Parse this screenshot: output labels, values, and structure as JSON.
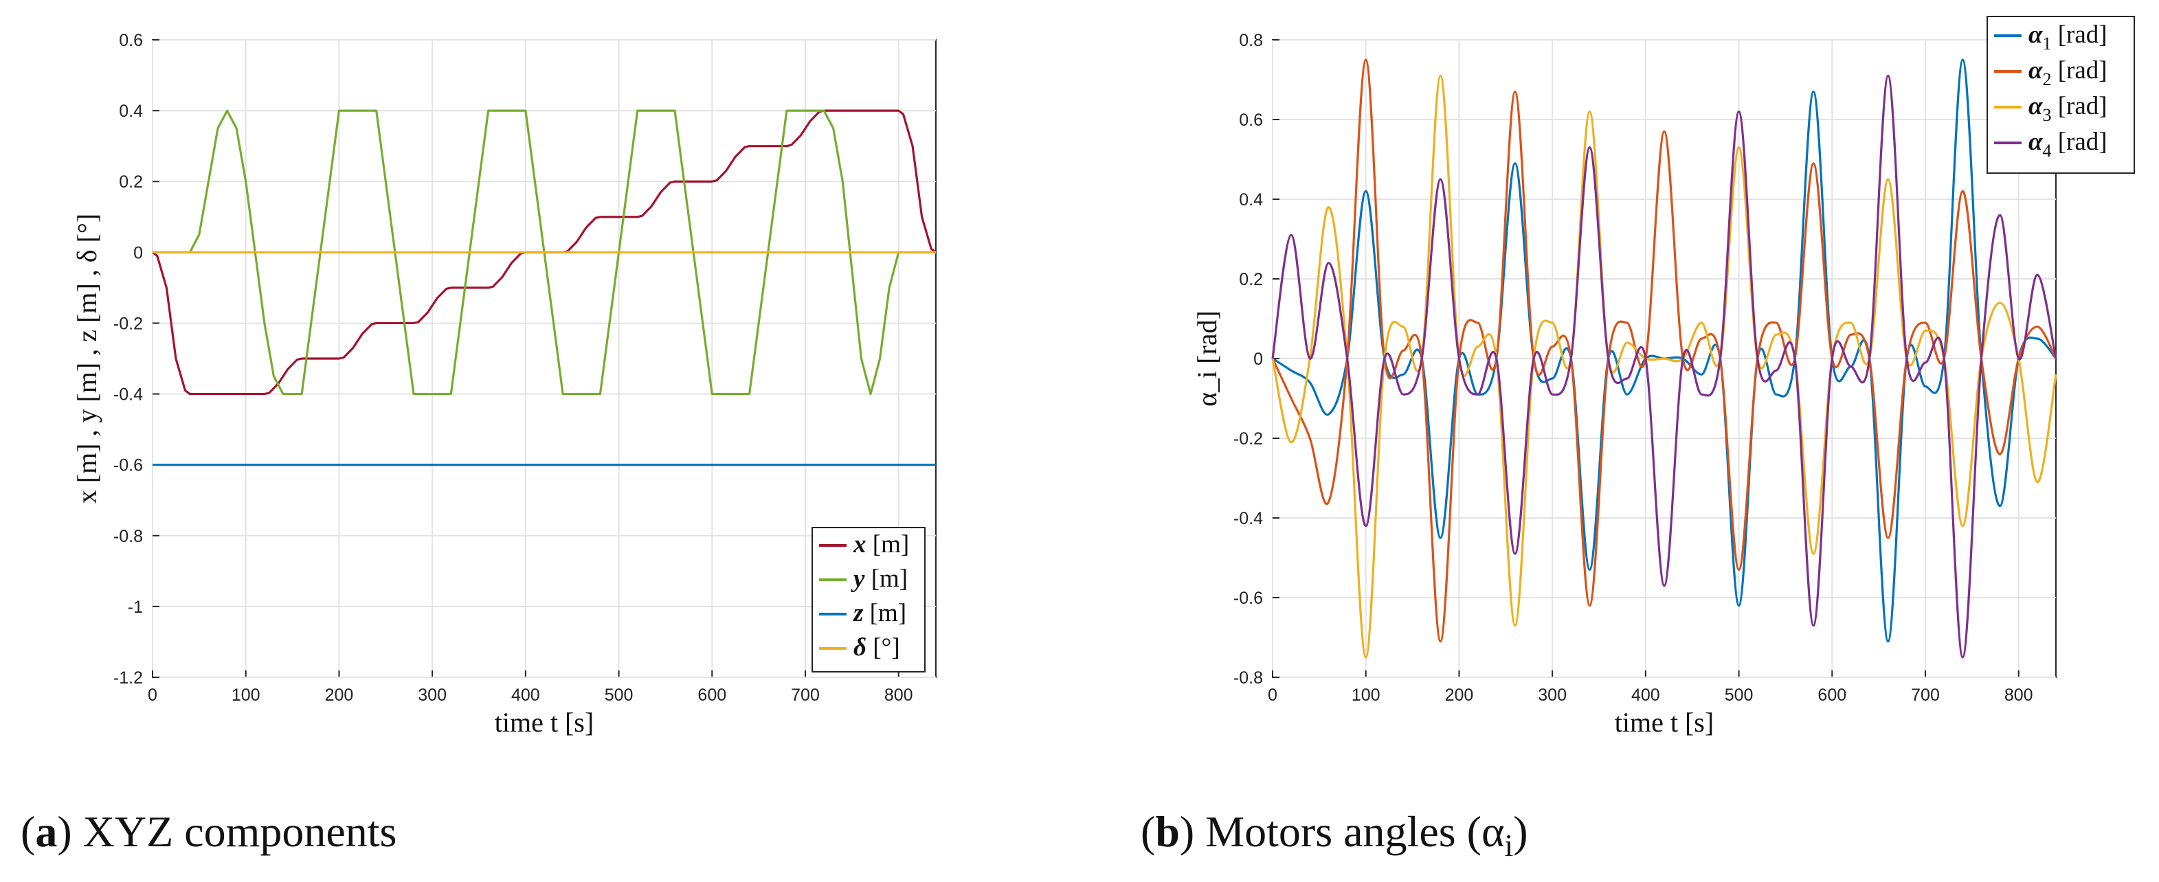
{
  "chart_data": [
    {
      "id": "a",
      "type": "line",
      "caption": {
        "letter": "a",
        "text": " XYZ components"
      },
      "xlabel": "time t [s]",
      "ylabel": "x [m] , y [m] , z [m] , δ [°]",
      "xlim": [
        0,
        840
      ],
      "ylim": [
        -1.2,
        0.6
      ],
      "xticks": [
        0,
        100,
        200,
        300,
        400,
        500,
        600,
        700,
        800
      ],
      "yticks": [
        -1.2,
        -1,
        -0.8,
        -0.6,
        -0.4,
        -0.2,
        0,
        0.2,
        0.4,
        0.6
      ],
      "ytick_labels": [
        "-1.2",
        "-1",
        "-0.8",
        "-0.6",
        "-0.4",
        "-0.2",
        "0",
        "0.2",
        "0.4",
        "0.6"
      ],
      "grid": true,
      "legend_position": "bottom-right",
      "series": [
        {
          "name": "x [m]",
          "color": "#a2142f",
          "x": [
            0,
            5,
            15,
            25,
            35,
            40,
            50,
            60,
            70,
            80,
            90,
            100,
            110,
            120,
            125,
            135,
            145,
            155,
            160,
            200,
            205,
            215,
            225,
            235,
            240,
            280,
            285,
            295,
            305,
            315,
            320,
            360,
            365,
            375,
            385,
            395,
            400,
            440,
            445,
            455,
            465,
            475,
            480,
            520,
            525,
            535,
            545,
            555,
            560,
            600,
            605,
            615,
            625,
            635,
            640,
            680,
            685,
            695,
            705,
            715,
            720,
            800,
            805,
            815,
            825,
            835,
            840
          ],
          "y": [
            0,
            -0.01,
            -0.1,
            -0.3,
            -0.39,
            -0.4,
            -0.4,
            -0.4,
            -0.4,
            -0.4,
            -0.4,
            -0.4,
            -0.4,
            -0.4,
            -0.397,
            -0.37,
            -0.33,
            -0.303,
            -0.3,
            -0.3,
            -0.297,
            -0.27,
            -0.23,
            -0.203,
            -0.2,
            -0.2,
            -0.197,
            -0.17,
            -0.13,
            -0.103,
            -0.1,
            -0.1,
            -0.097,
            -0.07,
            -0.03,
            -0.003,
            0,
            0,
            0.003,
            0.03,
            0.07,
            0.097,
            0.1,
            0.1,
            0.103,
            0.13,
            0.17,
            0.197,
            0.2,
            0.2,
            0.203,
            0.23,
            0.27,
            0.297,
            0.3,
            0.3,
            0.303,
            0.33,
            0.37,
            0.397,
            0.4,
            0.4,
            0.39,
            0.3,
            0.1,
            0.01,
            0
          ]
        },
        {
          "name": "y [m]",
          "color": "#77ac30",
          "x": [
            0,
            40,
            50,
            60,
            70,
            80,
            90,
            100,
            110,
            120,
            130,
            140,
            150,
            160,
            170,
            180,
            190,
            200,
            240,
            250,
            260,
            270,
            280,
            320,
            330,
            340,
            350,
            360,
            400,
            410,
            420,
            430,
            440,
            480,
            490,
            500,
            510,
            520,
            560,
            570,
            580,
            590,
            600,
            640,
            650,
            660,
            670,
            680,
            720,
            730,
            740,
            750,
            760,
            770,
            780,
            790,
            800,
            840
          ],
          "y": [
            0,
            0,
            0.05,
            0.2,
            0.35,
            0.4,
            0.35,
            0.2,
            0.0,
            -0.2,
            -0.35,
            -0.4,
            -0.4,
            -0.4,
            -0.2,
            0.0,
            0.2,
            0.4,
            0.4,
            0.2,
            0.0,
            -0.2,
            -0.4,
            -0.4,
            -0.2,
            0.0,
            0.2,
            0.4,
            0.4,
            0.2,
            0.0,
            -0.2,
            -0.4,
            -0.4,
            -0.2,
            0.0,
            0.2,
            0.4,
            0.4,
            0.2,
            0.0,
            -0.2,
            -0.4,
            -0.4,
            -0.2,
            0.0,
            0.2,
            0.4,
            0.4,
            0.35,
            0.2,
            -0.05,
            -0.3,
            -0.4,
            -0.3,
            -0.1,
            0,
            0
          ]
        },
        {
          "name": "z [m]",
          "color": "#0072bd",
          "x": [
            0,
            840
          ],
          "y": [
            -0.6,
            -0.6
          ]
        },
        {
          "name": "δ [°]",
          "color": "#edb120",
          "x": [
            0,
            840
          ],
          "y": [
            0,
            0
          ]
        }
      ]
    },
    {
      "id": "b",
      "type": "line",
      "caption": {
        "letter": "b",
        "text": " Motors angles (α",
        "sub": "i",
        "tail": ")"
      },
      "xlabel": "time t [s]",
      "ylabel": "α_i [rad]",
      "xlim": [
        0,
        840
      ],
      "ylim": [
        -0.8,
        0.8
      ],
      "xticks": [
        0,
        100,
        200,
        300,
        400,
        500,
        600,
        700,
        800
      ],
      "yticks": [
        -0.8,
        -0.6,
        -0.4,
        -0.2,
        0,
        0.2,
        0.4,
        0.6,
        0.8
      ],
      "ytick_labels": [
        "-0.8",
        "-0.6",
        "-0.4",
        "-0.2",
        "0",
        "0.2",
        "0.4",
        "0.6",
        "0.8"
      ],
      "grid": true,
      "legend_position": "top-right",
      "series": [
        {
          "name": "α1 [rad]",
          "label_main": "α",
          "label_sub": "1",
          "label_tail": " [rad]",
          "color": "#0072bd",
          "x": [
            0,
            20,
            40,
            60,
            80,
            100,
            120,
            140,
            160,
            180,
            200,
            220,
            240,
            260,
            280,
            300,
            320,
            340,
            360,
            380,
            400,
            420,
            440,
            460,
            480,
            500,
            520,
            540,
            560,
            580,
            600,
            620,
            640,
            660,
            680,
            700,
            720,
            740,
            760,
            780,
            800,
            820,
            840
          ],
          "y": [
            0,
            -0.03,
            -0.06,
            -0.14,
            0,
            0.42,
            0.0,
            -0.04,
            0,
            -0.45,
            0,
            -0.09,
            0,
            0.49,
            0,
            -0.05,
            0,
            -0.53,
            0,
            -0.09,
            0,
            0.0,
            0,
            -0.04,
            0,
            -0.62,
            0,
            -0.09,
            0,
            0.67,
            0,
            -0.02,
            0,
            -0.71,
            0,
            -0.07,
            0,
            0.75,
            0,
            -0.37,
            0,
            0.05,
            0
          ]
        },
        {
          "name": "α2 [rad]",
          "label_main": "α",
          "label_sub": "2",
          "label_tail": " [rad]",
          "color": "#d95319",
          "x": [
            0,
            20,
            40,
            60,
            80,
            100,
            120,
            140,
            160,
            180,
            200,
            220,
            240,
            260,
            280,
            300,
            320,
            340,
            360,
            380,
            400,
            420,
            440,
            460,
            480,
            500,
            520,
            540,
            560,
            580,
            600,
            620,
            640,
            660,
            680,
            700,
            720,
            740,
            760,
            780,
            800,
            820,
            840
          ],
          "y": [
            0,
            -0.1,
            -0.2,
            -0.36,
            0,
            0.75,
            0,
            0.02,
            0,
            -0.71,
            0,
            0.09,
            0,
            0.67,
            0,
            0.03,
            0,
            -0.62,
            0,
            0.09,
            0,
            0.57,
            0,
            0.05,
            0,
            -0.53,
            0,
            0.09,
            0,
            0.49,
            0,
            0.06,
            0,
            -0.45,
            0,
            0.09,
            0,
            0.42,
            0,
            -0.24,
            0,
            0.08,
            0
          ]
        },
        {
          "name": "α3 [rad]",
          "label_main": "α",
          "label_sub": "3",
          "label_tail": " [rad]",
          "color": "#edb120",
          "x": [
            0,
            20,
            40,
            60,
            80,
            100,
            120,
            140,
            160,
            180,
            200,
            220,
            240,
            260,
            280,
            300,
            320,
            340,
            360,
            380,
            400,
            420,
            440,
            460,
            480,
            500,
            520,
            540,
            560,
            580,
            600,
            620,
            640,
            660,
            680,
            700,
            720,
            740,
            760,
            780,
            800,
            820,
            840
          ],
          "y": [
            0,
            -0.21,
            0,
            0.38,
            0,
            -0.75,
            0,
            0.08,
            0,
            0.71,
            0,
            0.03,
            0,
            -0.67,
            0,
            0.09,
            0,
            0.62,
            0,
            0.04,
            0,
            0.0,
            0,
            0.09,
            0,
            0.53,
            0,
            0.06,
            0,
            -0.49,
            0,
            0.09,
            0,
            0.45,
            0,
            0.07,
            0,
            -0.42,
            0,
            0.14,
            0,
            -0.31,
            -0.04
          ]
        },
        {
          "name": "α4 [rad]",
          "label_main": "α",
          "label_sub": "4",
          "label_tail": " [rad]",
          "color": "#7e2f8e",
          "x": [
            0,
            20,
            40,
            60,
            80,
            100,
            120,
            140,
            160,
            180,
            200,
            220,
            240,
            260,
            280,
            300,
            320,
            340,
            360,
            380,
            400,
            420,
            440,
            460,
            480,
            500,
            520,
            540,
            560,
            580,
            600,
            620,
            640,
            660,
            680,
            700,
            720,
            740,
            760,
            780,
            800,
            820,
            840
          ],
          "y": [
            0,
            0.31,
            0,
            0.24,
            0,
            -0.42,
            0,
            -0.09,
            0,
            0.45,
            0,
            -0.09,
            0,
            -0.49,
            0,
            -0.09,
            0,
            0.53,
            0,
            -0.05,
            0,
            -0.57,
            0,
            -0.09,
            0,
            0.62,
            0,
            -0.03,
            0,
            -0.67,
            0,
            -0.02,
            0,
            0.71,
            0,
            -0.01,
            0,
            -0.75,
            0,
            0.36,
            0,
            0.21,
            0
          ]
        }
      ]
    }
  ]
}
